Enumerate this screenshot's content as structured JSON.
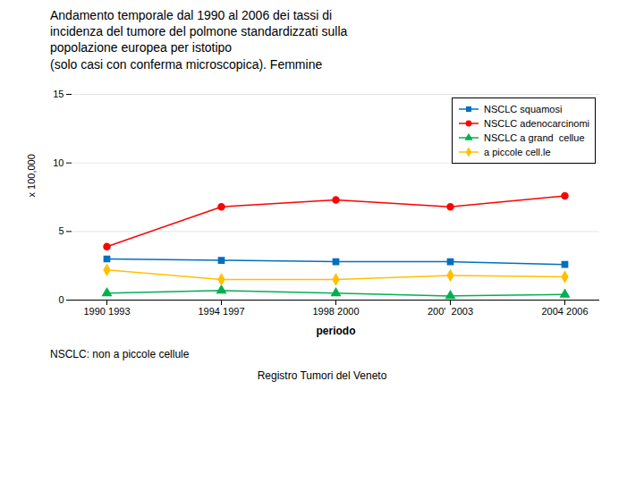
{
  "chart_data": {
    "type": "line",
    "title": "Andamento temporale dal 1990 al 2006 dei tassi di\nincidenza del tumore del polmone standardizzati sulla\npopolazione europea per istotipo\n(solo casi con conferma microscopica). Femmine",
    "xlabel": "periodo",
    "ylabel": "x 100,000",
    "categories": [
      "1990 1993",
      "1994 1997",
      "1998 2000",
      "200'  2003",
      "2004 2006"
    ],
    "series": [
      {
        "name": "NSCLC squamosi",
        "color": "#0070C0",
        "marker": "square",
        "values": [
          3.0,
          2.9,
          2.8,
          2.8,
          2.6
        ]
      },
      {
        "name": "NSCLC adenocarcinomi",
        "color": "#FF0000",
        "marker": "circle",
        "values": [
          3.9,
          6.8,
          7.3,
          6.8,
          7.6
        ]
      },
      {
        "name": "NSCLC a grand  cellue",
        "color": "#00B050",
        "marker": "triangle",
        "values": [
          0.5,
          0.7,
          0.5,
          0.3,
          0.4
        ]
      },
      {
        "name": "a piccole cell.le",
        "color": "#FFC000",
        "marker": "diamond",
        "values": [
          2.2,
          1.5,
          1.5,
          1.8,
          1.7
        ]
      }
    ],
    "ylim": [
      0,
      15
    ],
    "yticks": [
      0,
      5,
      10,
      15
    ],
    "grid": true,
    "legend": "upper right",
    "annotations": [
      "NSCLC: non a piccole cellule",
      "Registro Tumori del Veneto"
    ]
  }
}
